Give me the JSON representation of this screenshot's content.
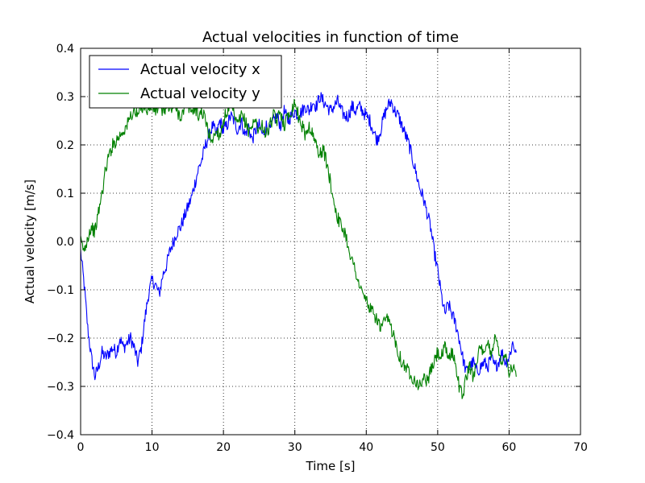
{
  "chart_data": {
    "type": "line",
    "title": "Actual velocities in function of time",
    "xlabel": "Time [s]",
    "ylabel": "Actual velocity [m/s]",
    "xlim": [
      0,
      70
    ],
    "ylim": [
      -0.4,
      0.4
    ],
    "x_ticks": [
      "0",
      "10",
      "20",
      "30",
      "40",
      "50",
      "60",
      "70"
    ],
    "y_ticks": [
      "0.4",
      "0.3",
      "0.2",
      "0.1",
      "0.0",
      "−0.1",
      "−0.2",
      "−0.3",
      "−0.4"
    ],
    "x_tick_values": [
      0,
      10,
      20,
      30,
      40,
      50,
      60,
      70
    ],
    "y_tick_values": [
      0.4,
      0.3,
      0.2,
      0.1,
      0.0,
      -0.1,
      -0.2,
      -0.3,
      -0.4
    ],
    "grid": true,
    "legend_position": "top-left",
    "series": [
      {
        "name": "Actual velocity x",
        "color": "#0000ff",
        "points": [
          [
            0.0,
            -0.02
          ],
          [
            0.5,
            -0.09
          ],
          [
            1.0,
            -0.18
          ],
          [
            1.5,
            -0.24
          ],
          [
            2.0,
            -0.28
          ],
          [
            2.5,
            -0.26
          ],
          [
            3.0,
            -0.23
          ],
          [
            3.5,
            -0.24
          ],
          [
            4.0,
            -0.23
          ],
          [
            4.5,
            -0.22
          ],
          [
            5.0,
            -0.23
          ],
          [
            5.5,
            -0.2
          ],
          [
            6.0,
            -0.22
          ],
          [
            6.5,
            -0.21
          ],
          [
            7.0,
            -0.2
          ],
          [
            7.5,
            -0.22
          ],
          [
            8.0,
            -0.25
          ],
          [
            8.5,
            -0.22
          ],
          [
            9.0,
            -0.16
          ],
          [
            9.5,
            -0.11
          ],
          [
            10.0,
            -0.08
          ],
          [
            10.5,
            -0.09
          ],
          [
            11.0,
            -0.11
          ],
          [
            11.5,
            -0.07
          ],
          [
            12.0,
            -0.05
          ],
          [
            12.5,
            -0.02
          ],
          [
            13.0,
            0.0
          ],
          [
            13.5,
            0.02
          ],
          [
            14.0,
            0.03
          ],
          [
            14.5,
            0.05
          ],
          [
            15.0,
            0.07
          ],
          [
            15.5,
            0.09
          ],
          [
            16.0,
            0.12
          ],
          [
            16.5,
            0.15
          ],
          [
            17.0,
            0.17
          ],
          [
            17.5,
            0.2
          ],
          [
            18.0,
            0.22
          ],
          [
            18.5,
            0.24
          ],
          [
            19.0,
            0.22
          ],
          [
            19.5,
            0.25
          ],
          [
            20.0,
            0.23
          ],
          [
            20.5,
            0.24
          ],
          [
            21.0,
            0.26
          ],
          [
            21.5,
            0.25
          ],
          [
            22.0,
            0.23
          ],
          [
            22.5,
            0.25
          ],
          [
            23.0,
            0.22
          ],
          [
            23.5,
            0.24
          ],
          [
            24.0,
            0.21
          ],
          [
            24.5,
            0.23
          ],
          [
            25.0,
            0.24
          ],
          [
            25.5,
            0.22
          ],
          [
            26.0,
            0.24
          ],
          [
            26.5,
            0.23
          ],
          [
            27.0,
            0.25
          ],
          [
            27.5,
            0.26
          ],
          [
            28.0,
            0.24
          ],
          [
            28.5,
            0.27
          ],
          [
            29.0,
            0.25
          ],
          [
            29.5,
            0.26
          ],
          [
            30.0,
            0.27
          ],
          [
            30.5,
            0.26
          ],
          [
            31.0,
            0.27
          ],
          [
            31.5,
            0.28
          ],
          [
            32.0,
            0.27
          ],
          [
            32.5,
            0.29
          ],
          [
            33.0,
            0.28
          ],
          [
            33.5,
            0.3
          ],
          [
            34.0,
            0.29
          ],
          [
            34.5,
            0.28
          ],
          [
            35.0,
            0.27
          ],
          [
            35.5,
            0.28
          ],
          [
            36.0,
            0.29
          ],
          [
            36.5,
            0.27
          ],
          [
            37.0,
            0.26
          ],
          [
            37.5,
            0.26
          ],
          [
            38.0,
            0.28
          ],
          [
            38.5,
            0.27
          ],
          [
            39.0,
            0.28
          ],
          [
            39.5,
            0.27
          ],
          [
            40.0,
            0.26
          ],
          [
            40.5,
            0.25
          ],
          [
            41.0,
            0.23
          ],
          [
            41.5,
            0.21
          ],
          [
            42.0,
            0.23
          ],
          [
            42.5,
            0.26
          ],
          [
            43.0,
            0.28
          ],
          [
            43.5,
            0.29
          ],
          [
            44.0,
            0.27
          ],
          [
            44.5,
            0.26
          ],
          [
            45.0,
            0.24
          ],
          [
            45.5,
            0.22
          ],
          [
            46.0,
            0.2
          ],
          [
            46.5,
            0.17
          ],
          [
            47.0,
            0.14
          ],
          [
            47.5,
            0.11
          ],
          [
            48.0,
            0.09
          ],
          [
            48.5,
            0.06
          ],
          [
            49.0,
            0.03
          ],
          [
            49.5,
            -0.02
          ],
          [
            50.0,
            -0.06
          ],
          [
            50.5,
            -0.11
          ],
          [
            51.0,
            -0.15
          ],
          [
            51.5,
            -0.13
          ],
          [
            52.0,
            -0.15
          ],
          [
            52.5,
            -0.17
          ],
          [
            53.0,
            -0.2
          ],
          [
            53.5,
            -0.24
          ],
          [
            54.0,
            -0.27
          ],
          [
            54.5,
            -0.26
          ],
          [
            55.0,
            -0.25
          ],
          [
            55.5,
            -0.27
          ],
          [
            56.0,
            -0.26
          ],
          [
            56.5,
            -0.25
          ],
          [
            57.0,
            -0.26
          ],
          [
            57.5,
            -0.24
          ],
          [
            58.0,
            -0.26
          ],
          [
            58.5,
            -0.25
          ],
          [
            59.0,
            -0.23
          ],
          [
            59.5,
            -0.25
          ],
          [
            60.0,
            -0.24
          ],
          [
            60.5,
            -0.21
          ],
          [
            61.0,
            -0.23
          ]
        ]
      },
      {
        "name": "Actual velocity y",
        "color": "#008000",
        "points": [
          [
            0.0,
            0.0
          ],
          [
            0.5,
            -0.02
          ],
          [
            1.0,
            0.01
          ],
          [
            1.5,
            0.03
          ],
          [
            2.0,
            0.02
          ],
          [
            2.5,
            0.06
          ],
          [
            3.0,
            0.1
          ],
          [
            3.5,
            0.15
          ],
          [
            4.0,
            0.18
          ],
          [
            4.5,
            0.2
          ],
          [
            5.0,
            0.21
          ],
          [
            5.5,
            0.22
          ],
          [
            6.0,
            0.23
          ],
          [
            6.5,
            0.24
          ],
          [
            7.0,
            0.26
          ],
          [
            7.5,
            0.27
          ],
          [
            8.0,
            0.26
          ],
          [
            8.5,
            0.28
          ],
          [
            9.0,
            0.28
          ],
          [
            9.5,
            0.27
          ],
          [
            10.0,
            0.28
          ],
          [
            10.5,
            0.27
          ],
          [
            11.0,
            0.28
          ],
          [
            11.5,
            0.27
          ],
          [
            12.0,
            0.28
          ],
          [
            12.5,
            0.27
          ],
          [
            13.0,
            0.28
          ],
          [
            13.5,
            0.27
          ],
          [
            14.0,
            0.26
          ],
          [
            14.5,
            0.27
          ],
          [
            15.0,
            0.28
          ],
          [
            15.5,
            0.27
          ],
          [
            16.0,
            0.28
          ],
          [
            16.5,
            0.26
          ],
          [
            17.0,
            0.27
          ],
          [
            17.5,
            0.25
          ],
          [
            18.0,
            0.22
          ],
          [
            18.5,
            0.21
          ],
          [
            19.0,
            0.23
          ],
          [
            19.5,
            0.22
          ],
          [
            20.0,
            0.25
          ],
          [
            20.5,
            0.27
          ],
          [
            21.0,
            0.28
          ],
          [
            21.5,
            0.26
          ],
          [
            22.0,
            0.24
          ],
          [
            22.5,
            0.26
          ],
          [
            23.0,
            0.25
          ],
          [
            23.5,
            0.23
          ],
          [
            24.0,
            0.24
          ],
          [
            24.5,
            0.25
          ],
          [
            25.0,
            0.23
          ],
          [
            25.5,
            0.24
          ],
          [
            26.0,
            0.22
          ],
          [
            26.5,
            0.24
          ],
          [
            27.0,
            0.26
          ],
          [
            27.5,
            0.25
          ],
          [
            28.0,
            0.27
          ],
          [
            28.5,
            0.24
          ],
          [
            29.0,
            0.26
          ],
          [
            29.5,
            0.27
          ],
          [
            30.0,
            0.29
          ],
          [
            30.5,
            0.26
          ],
          [
            31.0,
            0.24
          ],
          [
            31.5,
            0.22
          ],
          [
            32.0,
            0.24
          ],
          [
            32.5,
            0.22
          ],
          [
            33.0,
            0.2
          ],
          [
            33.5,
            0.18
          ],
          [
            34.0,
            0.19
          ],
          [
            34.5,
            0.16
          ],
          [
            35.0,
            0.12
          ],
          [
            35.5,
            0.08
          ],
          [
            36.0,
            0.05
          ],
          [
            36.5,
            0.03
          ],
          [
            37.0,
            0.02
          ],
          [
            37.5,
            -0.01
          ],
          [
            38.0,
            -0.04
          ],
          [
            38.5,
            -0.06
          ],
          [
            39.0,
            -0.09
          ],
          [
            39.5,
            -0.11
          ],
          [
            40.0,
            -0.12
          ],
          [
            40.5,
            -0.14
          ],
          [
            41.0,
            -0.15
          ],
          [
            41.5,
            -0.16
          ],
          [
            42.0,
            -0.18
          ],
          [
            42.5,
            -0.17
          ],
          [
            43.0,
            -0.16
          ],
          [
            43.5,
            -0.18
          ],
          [
            44.0,
            -0.2
          ],
          [
            44.5,
            -0.23
          ],
          [
            45.0,
            -0.25
          ],
          [
            45.5,
            -0.26
          ],
          [
            46.0,
            -0.27
          ],
          [
            46.5,
            -0.28
          ],
          [
            47.0,
            -0.29
          ],
          [
            47.5,
            -0.3
          ],
          [
            48.0,
            -0.28
          ],
          [
            48.5,
            -0.29
          ],
          [
            49.0,
            -0.27
          ],
          [
            49.5,
            -0.25
          ],
          [
            50.0,
            -0.23
          ],
          [
            50.5,
            -0.24
          ],
          [
            51.0,
            -0.22
          ],
          [
            51.5,
            -0.24
          ],
          [
            52.0,
            -0.23
          ],
          [
            52.5,
            -0.25
          ],
          [
            53.0,
            -0.3
          ],
          [
            53.5,
            -0.32
          ],
          [
            54.0,
            -0.28
          ],
          [
            54.5,
            -0.26
          ],
          [
            55.0,
            -0.28
          ],
          [
            55.5,
            -0.24
          ],
          [
            56.0,
            -0.22
          ],
          [
            56.5,
            -0.24
          ],
          [
            57.0,
            -0.21
          ],
          [
            57.5,
            -0.23
          ],
          [
            58.0,
            -0.2
          ],
          [
            58.5,
            -0.22
          ],
          [
            59.0,
            -0.25
          ],
          [
            59.5,
            -0.23
          ],
          [
            60.0,
            -0.27
          ],
          [
            60.5,
            -0.26
          ],
          [
            61.0,
            -0.28
          ]
        ]
      }
    ]
  }
}
